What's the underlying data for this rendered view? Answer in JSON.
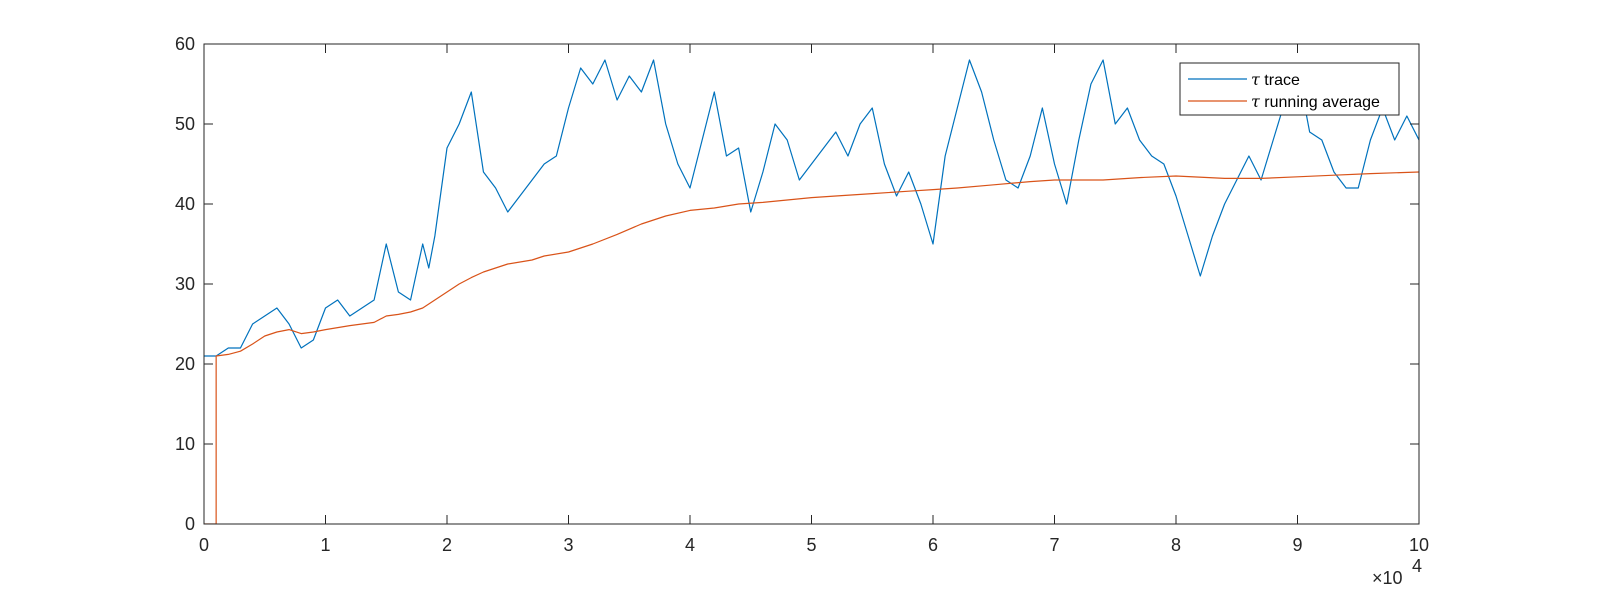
{
  "chart_data": {
    "type": "line",
    "title": "",
    "xlabel": "",
    "ylabel": "",
    "xlim": [
      0,
      100000
    ],
    "ylim": [
      0,
      60
    ],
    "x_exponent_label": "×10",
    "x_exponent_power": "4",
    "x_ticks": [
      0,
      10000,
      20000,
      30000,
      40000,
      50000,
      60000,
      70000,
      80000,
      90000,
      100000
    ],
    "x_tick_labels": [
      "0",
      "1",
      "2",
      "3",
      "4",
      "5",
      "6",
      "7",
      "8",
      "9",
      "10"
    ],
    "y_ticks": [
      0,
      10,
      20,
      30,
      40,
      50,
      60
    ],
    "y_tick_labels": [
      "0",
      "10",
      "20",
      "30",
      "40",
      "50",
      "60"
    ],
    "grid": false,
    "legend_position": "top-right",
    "legend_symbol": "τ",
    "series": [
      {
        "name": "τ trace",
        "legend_suffix": " trace",
        "color": "#0072BD",
        "x": [
          0,
          1000,
          2000,
          3000,
          4000,
          5000,
          6000,
          7000,
          8000,
          9000,
          10000,
          11000,
          12000,
          13000,
          14000,
          15000,
          16000,
          17000,
          18000,
          18500,
          19000,
          20000,
          21000,
          22000,
          23000,
          24000,
          25000,
          26000,
          27000,
          28000,
          29000,
          30000,
          31000,
          32000,
          33000,
          34000,
          35000,
          36000,
          37000,
          38000,
          39000,
          40000,
          41000,
          42000,
          43000,
          44000,
          45000,
          46000,
          47000,
          48000,
          49000,
          50000,
          51000,
          52000,
          53000,
          54000,
          55000,
          56000,
          57000,
          58000,
          59000,
          60000,
          61000,
          62000,
          63000,
          64000,
          65000,
          66000,
          67000,
          68000,
          69000,
          70000,
          71000,
          72000,
          73000,
          74000,
          75000,
          76000,
          77000,
          78000,
          79000,
          80000,
          81000,
          82000,
          83000,
          84000,
          85000,
          86000,
          87000,
          88000,
          89000,
          90000,
          91000,
          92000,
          93000,
          94000,
          95000,
          96000,
          97000,
          98000,
          99000,
          100000
        ],
        "y": [
          21,
          21,
          22,
          22,
          25,
          26,
          27,
          25,
          22,
          23,
          27,
          28,
          26,
          27,
          28,
          35,
          29,
          28,
          35,
          32,
          36,
          47,
          50,
          54,
          44,
          42,
          39,
          41,
          43,
          45,
          46,
          52,
          57,
          55,
          58,
          53,
          56,
          54,
          58,
          50,
          45,
          42,
          48,
          54,
          46,
          47,
          39,
          44,
          50,
          48,
          43,
          45,
          47,
          49,
          46,
          50,
          52,
          45,
          41,
          44,
          40,
          35,
          46,
          52,
          58,
          54,
          48,
          43,
          42,
          46,
          52,
          45,
          40,
          48,
          55,
          58,
          50,
          52,
          48,
          46,
          45,
          41,
          36,
          31,
          36,
          40,
          43,
          46,
          43,
          48,
          53,
          57,
          49,
          48,
          44,
          42,
          42,
          48,
          52,
          48,
          51,
          48
        ]
      },
      {
        "name": "τ running average",
        "legend_suffix": " running average",
        "color": "#D95319",
        "x": [
          0,
          999,
          1000,
          2000,
          3000,
          4000,
          5000,
          6000,
          7000,
          8000,
          9000,
          10000,
          12000,
          14000,
          15000,
          16000,
          17000,
          18000,
          19000,
          20000,
          21000,
          22000,
          23000,
          24000,
          25000,
          27000,
          28000,
          30000,
          32000,
          34000,
          36000,
          38000,
          40000,
          42000,
          44000,
          46000,
          48000,
          50000,
          52000,
          55000,
          58000,
          60000,
          62000,
          65000,
          68000,
          70000,
          74000,
          77000,
          80000,
          84000,
          87000,
          90000,
          93000,
          96000,
          100000
        ],
        "y": [
          0,
          0,
          21,
          21.2,
          21.6,
          22.5,
          23.5,
          24,
          24.3,
          23.8,
          24,
          24.3,
          24.8,
          25.2,
          26,
          26.2,
          26.5,
          27,
          28,
          29,
          30,
          30.8,
          31.5,
          32,
          32.5,
          33,
          33.5,
          34,
          35,
          36.2,
          37.5,
          38.5,
          39.2,
          39.5,
          40,
          40.2,
          40.5,
          40.8,
          41,
          41.3,
          41.6,
          41.8,
          42,
          42.4,
          42.8,
          43,
          43,
          43.3,
          43.5,
          43.2,
          43.2,
          43.4,
          43.6,
          43.8,
          44
        ]
      }
    ]
  }
}
